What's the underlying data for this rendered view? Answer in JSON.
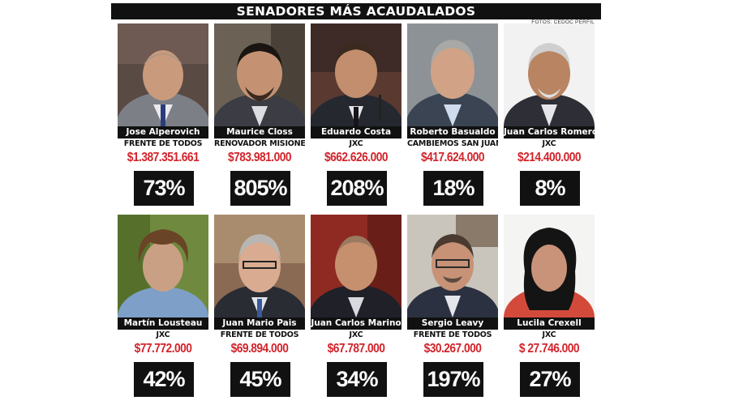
{
  "header": {
    "title": "SENADORES MÁS ACAUDALADOS",
    "credit": "FOTOS: CEDOC PERFIL"
  },
  "senators": [
    {
      "name": "Jose Alperovich",
      "party": "FRENTE DE TODOS",
      "amount": "$1.387.351.661",
      "percent": "73%"
    },
    {
      "name": "Maurice Closs",
      "party": "RENOVADOR MISIONES",
      "amount": "$783.981.000",
      "percent": "805%"
    },
    {
      "name": "Eduardo Costa",
      "party": "JXC",
      "amount": "$662.626.000",
      "percent": "208%"
    },
    {
      "name": "Roberto Basualdo",
      "party": "CAMBIEMOS SAN JUAN",
      "amount": "$417.624.000",
      "percent": "18%"
    },
    {
      "name": "Juan Carlos Romero",
      "party": "JXC",
      "amount": "$214.400.000",
      "percent": "8%"
    },
    {
      "name": "Martín Lousteau",
      "party": "JXC",
      "amount": "$77.772.000",
      "percent": "42%"
    },
    {
      "name": "Juan Mario Pais",
      "party": "FRENTE DE TODOS",
      "amount": "$69.894.000",
      "percent": "45%"
    },
    {
      "name": "Juan Carlos Marino",
      "party": "JXC",
      "amount": "$67.787.000",
      "percent": "34%"
    },
    {
      "name": "Sergio Leavy",
      "party": "FRENTE DE TODOS",
      "amount": "$30.267.000",
      "percent": "197%"
    },
    {
      "name": "Lucila Crexell",
      "party": "JXC",
      "amount": "$ 27.746.000",
      "percent": "27%"
    }
  ],
  "colors": {
    "amount": "#d2232a",
    "bar": "#111111"
  }
}
